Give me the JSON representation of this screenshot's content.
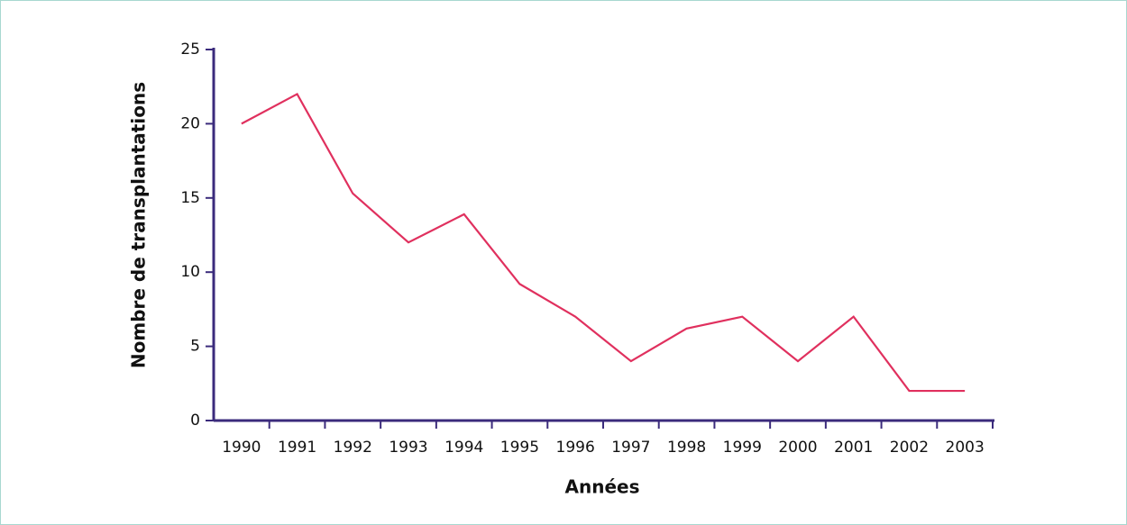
{
  "chart_data": {
    "type": "line",
    "x_label": "Années",
    "y_label": "Nombre de transplantations",
    "categories": [
      "1990",
      "1991",
      "1992",
      "1993",
      "1994",
      "1995",
      "1996",
      "1997",
      "1998",
      "1999",
      "2000",
      "2001",
      "2002",
      "2003"
    ],
    "series": [
      {
        "color": "#e0305e",
        "values": [
          20,
          22,
          15.3,
          12,
          13.9,
          9.2,
          7,
          4,
          6.2,
          7,
          4,
          7,
          2,
          2
        ]
      }
    ],
    "ylim": [
      0,
      25
    ],
    "yticks": [
      0,
      5,
      10,
      15,
      20,
      25
    ],
    "grid": false
  }
}
